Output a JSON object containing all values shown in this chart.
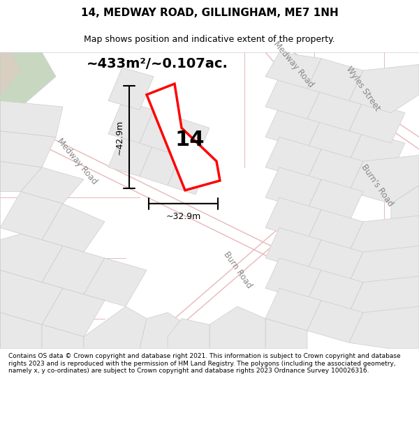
{
  "title": "14, MEDWAY ROAD, GILLINGHAM, ME7 1NH",
  "subtitle": "Map shows position and indicative extent of the property.",
  "area_text": "~433m²/~0.107ac.",
  "number_label": "14",
  "dim_width": "~32.9m",
  "dim_height": "~42.9m",
  "footer": "Contains OS data © Crown copyright and database right 2021. This information is subject to Crown copyright and database rights 2023 and is reproduced with the permission of HM Land Registry. The polygons (including the associated geometry, namely x, y co-ordinates) are subject to Crown copyright and database rights 2023 Ordnance Survey 100026316.",
  "bg_color": "#f5f3f0",
  "map_bg": "#f8f7f5",
  "road_color_light": "#e8c8c8",
  "road_color_dark": "#d4b0b0",
  "property_color": "red",
  "block_color": "#e0e0e0",
  "green_color": "#c8dbc8",
  "beige_color": "#e8e0d8"
}
